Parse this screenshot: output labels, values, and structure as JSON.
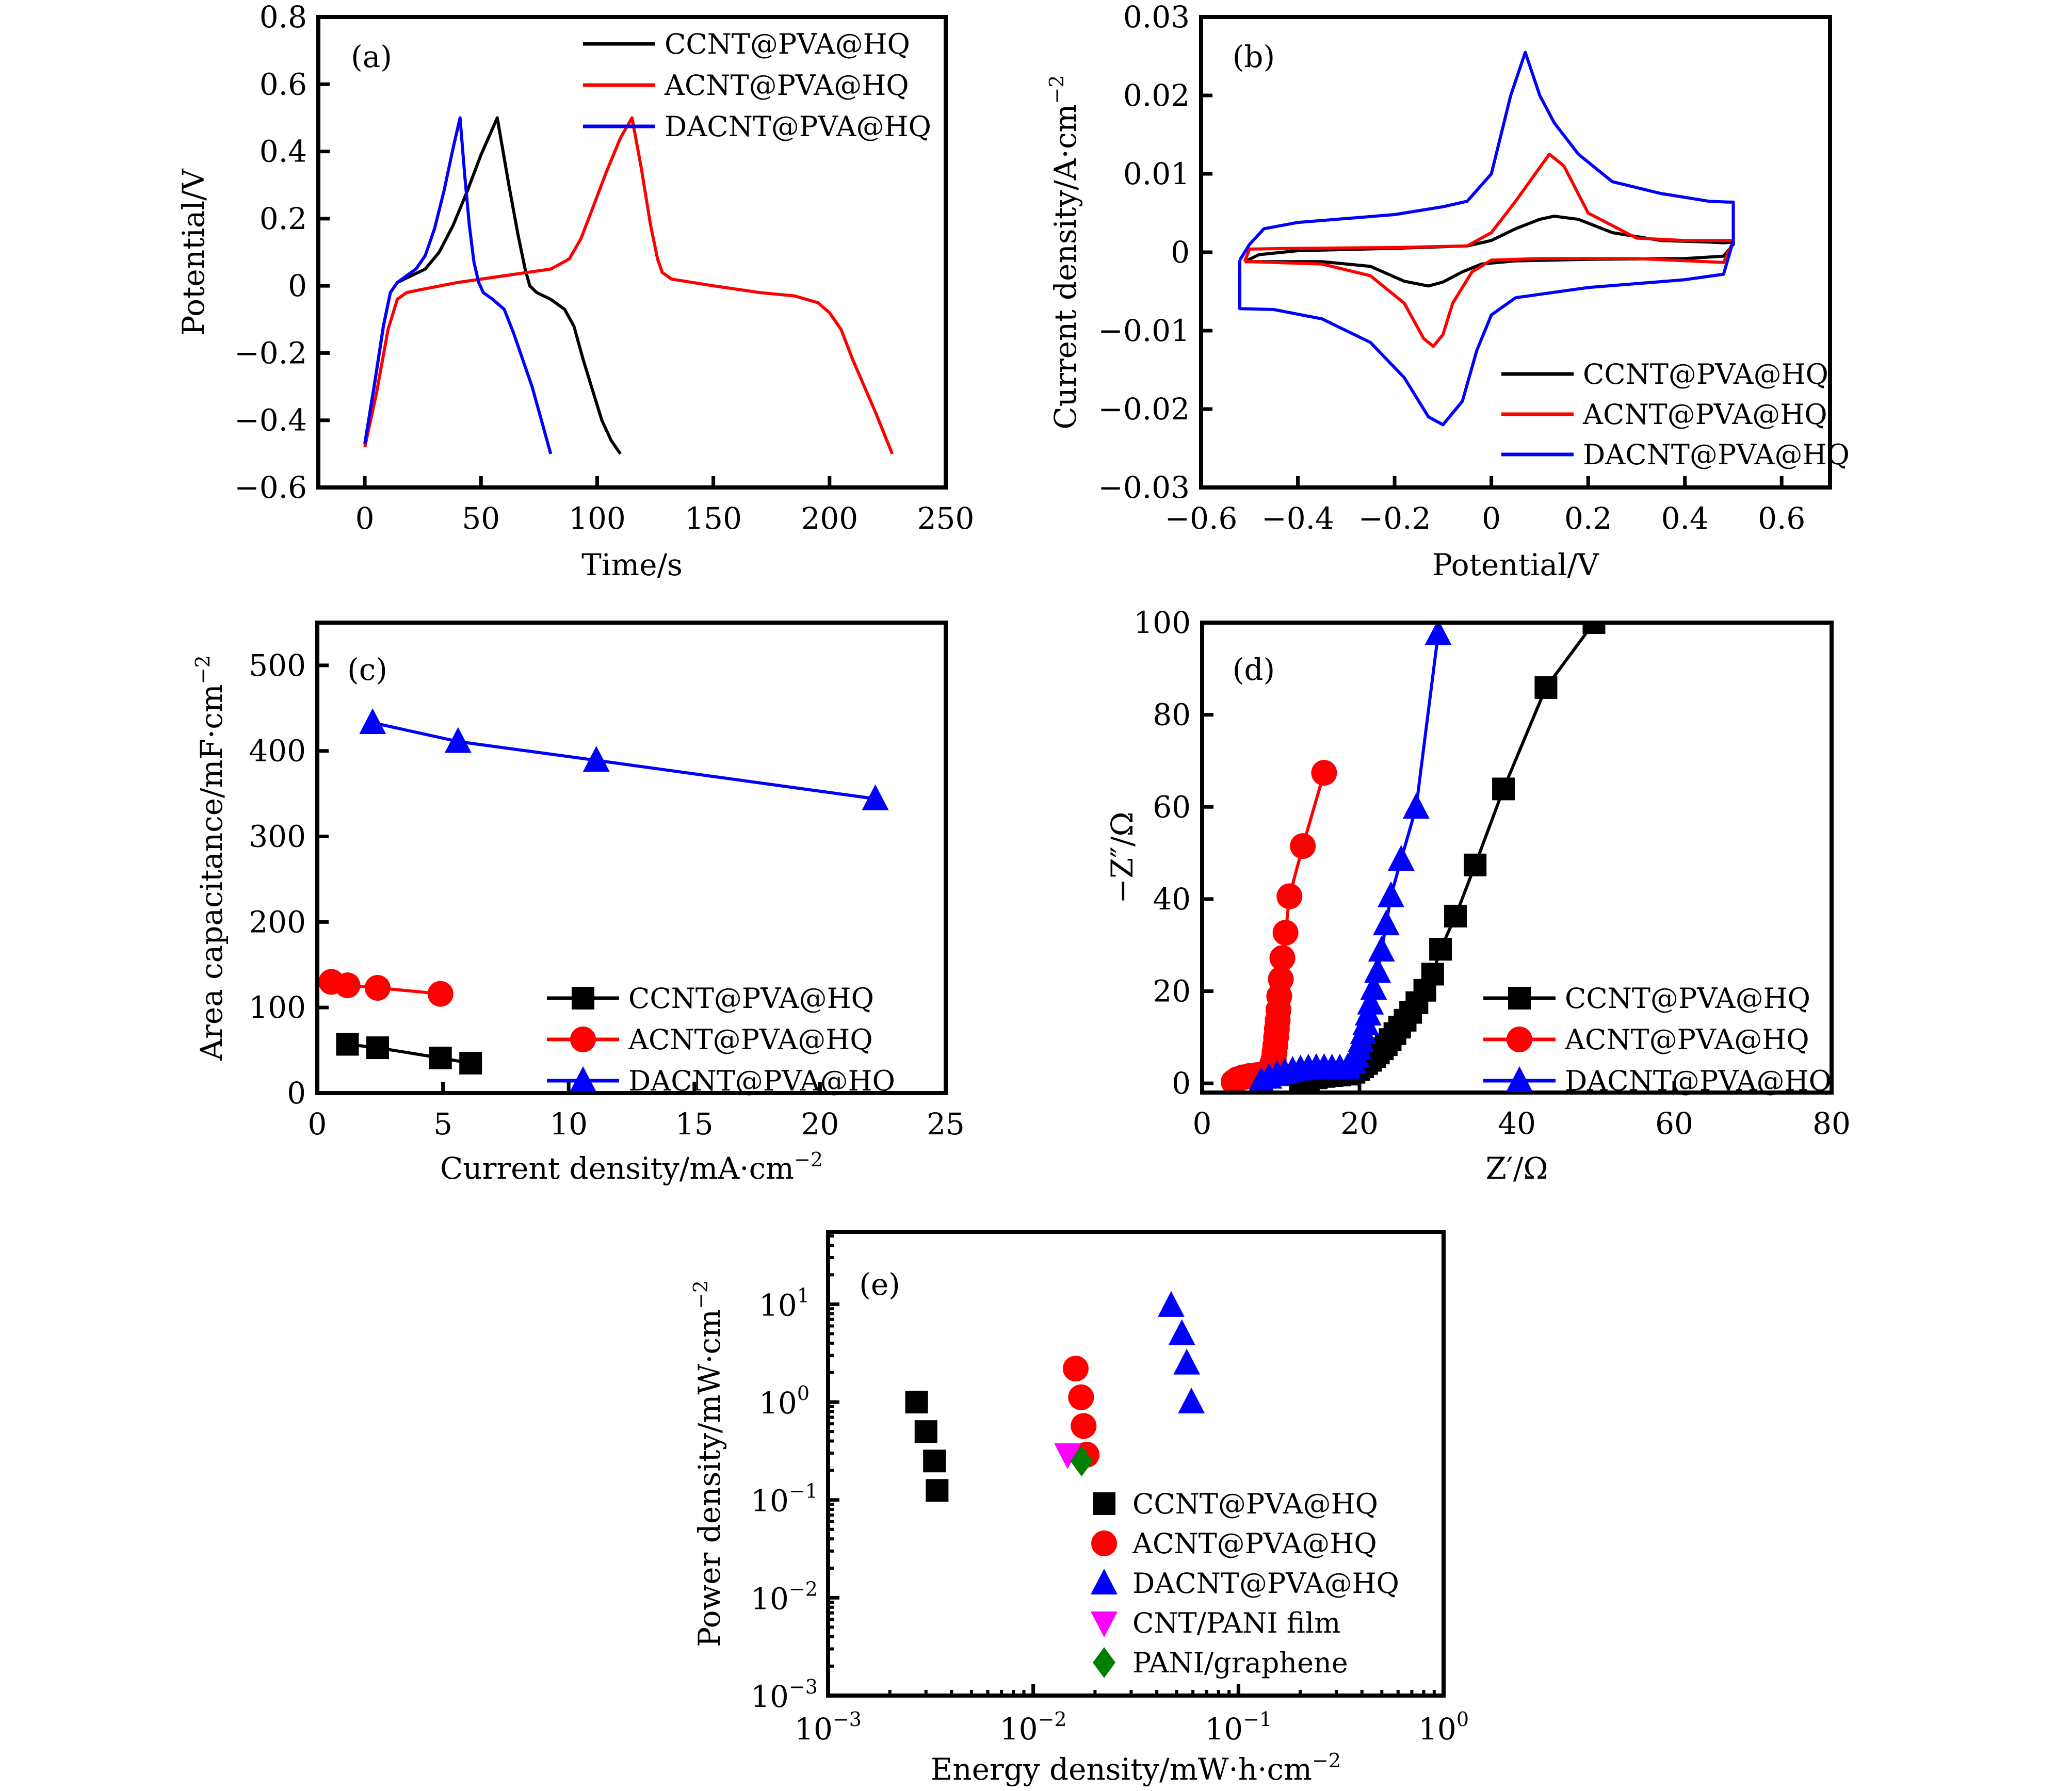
{
  "figure": {
    "panels": [
      "(a)",
      "(b)",
      "(c)",
      "(d)",
      "(e)"
    ]
  },
  "colors": {
    "CCNT@PVA@HQ": "#000000",
    "ACNT@PVA@HQ": "#ff0000",
    "DACNT@PVA@HQ": "#0000ff",
    "CNT/PANI film": "#ff00ff",
    "PANI/graphene": "#008000"
  },
  "chart_data": [
    {
      "id": "a",
      "panel_label": "(a)",
      "type": "line",
      "title": "",
      "xlabel": "Time/s",
      "ylabel": "Potential/V",
      "xlim": [
        -20,
        250
      ],
      "ylim": [
        -0.6,
        0.8
      ],
      "xticks": [
        0,
        50,
        100,
        150,
        200,
        250
      ],
      "yticks": [
        -0.6,
        -0.4,
        -0.2,
        0,
        0.2,
        0.4,
        0.6,
        0.8
      ],
      "ytick_labels": [
        "−0.6",
        "−0.4",
        "−0.2",
        "0",
        "0.2",
        "0.4",
        "0.6",
        "0.8"
      ],
      "xtick_labels": [
        "0",
        "50",
        "100",
        "150",
        "200",
        "250"
      ],
      "legend_position": "top-right",
      "grid": false,
      "series": [
        {
          "name": "CCNT@PVA@HQ",
          "color": "#000000",
          "x": [
            0,
            4,
            8,
            11,
            14,
            20,
            26,
            32,
            38,
            44,
            50,
            57,
            62,
            66,
            69,
            71,
            74,
            80,
            86,
            90,
            94,
            98,
            102,
            106,
            110
          ],
          "y": [
            -0.47,
            -0.3,
            -0.12,
            -0.02,
            0.01,
            0.03,
            0.05,
            0.1,
            0.18,
            0.28,
            0.39,
            0.5,
            0.3,
            0.15,
            0.05,
            0.0,
            -0.02,
            -0.04,
            -0.07,
            -0.12,
            -0.22,
            -0.31,
            -0.4,
            -0.46,
            -0.5
          ]
        },
        {
          "name": "ACNT@PVA@HQ",
          "color": "#ff0000",
          "x": [
            0,
            5,
            10,
            14,
            18,
            25,
            40,
            60,
            80,
            88,
            93,
            98,
            104,
            110,
            115,
            119,
            123,
            126,
            128,
            132,
            150,
            170,
            185,
            195,
            200,
            205,
            210,
            215,
            220,
            227
          ],
          "y": [
            -0.48,
            -0.32,
            -0.13,
            -0.04,
            -0.02,
            -0.01,
            0.01,
            0.03,
            0.05,
            0.08,
            0.14,
            0.23,
            0.34,
            0.44,
            0.5,
            0.35,
            0.18,
            0.08,
            0.04,
            0.02,
            0.0,
            -0.02,
            -0.03,
            -0.05,
            -0.08,
            -0.13,
            -0.22,
            -0.3,
            -0.38,
            -0.5
          ]
        },
        {
          "name": "DACNT@PVA@HQ",
          "color": "#0000ff",
          "x": [
            0,
            4,
            8,
            11,
            14,
            18,
            22,
            26,
            30,
            34,
            38,
            41,
            43,
            45,
            47,
            49,
            51,
            55,
            60,
            64,
            68,
            72,
            76,
            80
          ],
          "y": [
            -0.47,
            -0.3,
            -0.12,
            -0.02,
            0.01,
            0.03,
            0.05,
            0.09,
            0.17,
            0.28,
            0.41,
            0.5,
            0.33,
            0.18,
            0.07,
            0.01,
            -0.02,
            -0.04,
            -0.07,
            -0.14,
            -0.22,
            -0.3,
            -0.4,
            -0.5
          ]
        }
      ]
    },
    {
      "id": "b",
      "panel_label": "(b)",
      "type": "line",
      "title": "",
      "xlabel": "Potential/V",
      "ylabel": "Current density/A·cm⁻²",
      "xlim": [
        -0.6,
        0.7
      ],
      "ylim": [
        -0.03,
        0.03
      ],
      "xticks": [
        -0.6,
        -0.4,
        -0.2,
        0,
        0.2,
        0.4,
        0.6
      ],
      "xtick_labels": [
        "−0.6",
        "−0.4",
        "−0.2",
        "0",
        "0.2",
        "0.4",
        "0.6"
      ],
      "yticks": [
        -0.03,
        -0.02,
        -0.01,
        0,
        0.01,
        0.02,
        0.03
      ],
      "ytick_labels": [
        "−0.03",
        "−0.02",
        "−0.01",
        "0",
        "0.01",
        "0.02",
        "0.03"
      ],
      "legend_position": "bottom-right",
      "grid": false,
      "series": [
        {
          "name": "CCNT@PVA@HQ",
          "color": "#000000",
          "x": [
            -0.51,
            -0.48,
            -0.4,
            -0.2,
            -0.05,
            0.0,
            0.05,
            0.1,
            0.13,
            0.18,
            0.25,
            0.35,
            0.45,
            0.48,
            0.5,
            0.5,
            0.48,
            0.4,
            0.2,
            0.05,
            -0.02,
            -0.06,
            -0.1,
            -0.13,
            -0.18,
            -0.25,
            -0.35,
            -0.45,
            -0.51
          ],
          "y": [
            -0.0012,
            -0.0003,
            0.0002,
            0.0005,
            0.0008,
            0.0015,
            0.003,
            0.0042,
            0.0046,
            0.0042,
            0.0025,
            0.0015,
            0.0013,
            0.0012,
            0.0013,
            0.001,
            -0.0005,
            -0.0008,
            -0.0009,
            -0.0011,
            -0.0015,
            -0.0025,
            -0.0038,
            -0.0043,
            -0.0037,
            -0.0018,
            -0.0012,
            -0.0012,
            -0.0012
          ]
        },
        {
          "name": "ACNT@PVA@HQ",
          "color": "#ff0000",
          "x": [
            -0.51,
            -0.5,
            -0.4,
            -0.2,
            -0.05,
            0.0,
            0.05,
            0.1,
            0.12,
            0.15,
            0.2,
            0.3,
            0.4,
            0.5,
            0.5,
            0.48,
            0.3,
            0.1,
            0.0,
            -0.04,
            -0.08,
            -0.1,
            -0.12,
            -0.14,
            -0.18,
            -0.25,
            -0.35,
            -0.5,
            -0.51
          ],
          "y": [
            -0.0012,
            0.0004,
            0.0005,
            0.0006,
            0.0008,
            0.0025,
            0.0065,
            0.0108,
            0.0125,
            0.011,
            0.005,
            0.0018,
            0.0015,
            0.0015,
            0.0014,
            -0.0013,
            -0.0008,
            -0.0008,
            -0.001,
            -0.0025,
            -0.0065,
            -0.0105,
            -0.012,
            -0.011,
            -0.0065,
            -0.003,
            -0.0015,
            -0.0012,
            -0.0012
          ]
        },
        {
          "name": "DACNT@PVA@HQ",
          "color": "#0000ff",
          "x": [
            -0.52,
            -0.5,
            -0.47,
            -0.4,
            -0.3,
            -0.2,
            -0.1,
            -0.05,
            0.0,
            0.04,
            0.07,
            0.1,
            0.13,
            0.18,
            0.25,
            0.35,
            0.45,
            0.49,
            0.5,
            0.5,
            0.48,
            0.4,
            0.2,
            0.05,
            0.0,
            -0.03,
            -0.06,
            -0.1,
            -0.13,
            -0.18,
            -0.25,
            -0.35,
            -0.45,
            -0.52,
            -0.52
          ],
          "y": [
            -0.001,
            0.001,
            0.003,
            0.0038,
            0.0043,
            0.0048,
            0.0058,
            0.0065,
            0.01,
            0.02,
            0.0255,
            0.02,
            0.0165,
            0.0125,
            0.009,
            0.0075,
            0.0065,
            0.0064,
            0.0064,
            0.0015,
            -0.0028,
            -0.0035,
            -0.0045,
            -0.0058,
            -0.008,
            -0.0125,
            -0.019,
            -0.022,
            -0.021,
            -0.016,
            -0.0115,
            -0.0085,
            -0.0073,
            -0.0072,
            -0.001
          ]
        }
      ]
    },
    {
      "id": "c",
      "panel_label": "(c)",
      "type": "line",
      "title": "",
      "xlabel": "Current density/mA·cm⁻²",
      "ylabel": "Area capacitance/mF·cm⁻²",
      "xlim": [
        0,
        25
      ],
      "ylim": [
        0,
        550
      ],
      "xticks": [
        0,
        5,
        10,
        15,
        20,
        25
      ],
      "xtick_labels": [
        "0",
        "5",
        "10",
        "15",
        "20",
        "25"
      ],
      "yticks": [
        0,
        100,
        200,
        300,
        400,
        500
      ],
      "ytick_labels": [
        "0",
        "100",
        "200",
        "300",
        "400",
        "500"
      ],
      "legend_position": "bottom-right",
      "grid": false,
      "series": [
        {
          "name": "CCNT@PVA@HQ",
          "color": "#000000",
          "marker": "square",
          "x": [
            1.2,
            2.4,
            4.9,
            6.1
          ],
          "y": [
            57,
            53,
            41,
            35
          ]
        },
        {
          "name": "ACNT@PVA@HQ",
          "color": "#ff0000",
          "marker": "circle",
          "x": [
            0.56,
            1.2,
            2.4,
            4.9
          ],
          "y": [
            130,
            126,
            123,
            116
          ]
        },
        {
          "name": "DACNT@PVA@HQ",
          "color": "#0000ff",
          "marker": "triangle",
          "x": [
            2.2,
            5.6,
            11.1,
            22.2
          ],
          "y": [
            433,
            411,
            389,
            344
          ]
        }
      ]
    },
    {
      "id": "d",
      "panel_label": "(d)",
      "type": "line",
      "title": "",
      "xlabel": "Z′/Ω",
      "ylabel": "−Z″/Ω",
      "xlim": [
        0,
        80
      ],
      "ylim": [
        -2,
        100
      ],
      "xticks": [
        0,
        20,
        40,
        60,
        80
      ],
      "xtick_labels": [
        "0",
        "20",
        "40",
        "60",
        "80"
      ],
      "yticks": [
        0,
        20,
        40,
        60,
        80,
        100
      ],
      "ytick_labels": [
        "0",
        "20",
        "40",
        "60",
        "80",
        "100"
      ],
      "legend_position": "bottom-right",
      "grid": false,
      "series": [
        {
          "name": "CCNT@PVA@HQ",
          "color": "#000000",
          "marker": "square",
          "x": [
            12.5,
            13.5,
            14.5,
            15.5,
            16.5,
            17.5,
            18.5,
            19.3,
            19.9,
            20.4,
            20.9,
            21.4,
            21.9,
            22.4,
            22.9,
            23.4,
            23.9,
            24.5,
            25.1,
            25.8,
            26.5,
            27.3,
            28.3,
            29.3,
            30.3,
            32.2,
            34.7,
            38.3,
            43.7,
            49.8
          ],
          "y": [
            0.2,
            0.7,
            1.2,
            1.5,
            1.7,
            1.8,
            2.0,
            2.4,
            3.0,
            3.6,
            4.3,
            5.0,
            5.8,
            6.6,
            7.5,
            8.4,
            9.5,
            10.8,
            12.2,
            13.7,
            15.4,
            17.5,
            20.2,
            23.7,
            29.1,
            36.3,
            47.4,
            63.9,
            85.9,
            100.0
          ]
        },
        {
          "name": "ACNT@PVA@HQ",
          "color": "#ff0000",
          "marker": "circle",
          "x": [
            4.0,
            4.5,
            5.2,
            6.0,
            7.0,
            7.8,
            8.4,
            8.7,
            8.9,
            9.1,
            9.2,
            9.3,
            9.4,
            9.5,
            9.6,
            9.7,
            9.8,
            10.0,
            10.2,
            10.6,
            11.1,
            12.8,
            15.5
          ],
          "y": [
            0.3,
            0.9,
            1.3,
            1.6,
            1.8,
            2.0,
            2.4,
            3.2,
            4.2,
            5.3,
            6.7,
            8.2,
            10.0,
            11.8,
            13.6,
            15.9,
            18.9,
            22.6,
            27.2,
            32.7,
            40.6,
            51.5,
            67.4
          ]
        },
        {
          "name": "DACNT@PVA@HQ",
          "color": "#0000ff",
          "marker": "triangle",
          "x": [
            7.5,
            8.5,
            9.5,
            10.5,
            11.5,
            12.5,
            13.5,
            14.5,
            15.5,
            16.5,
            17.5,
            18.5,
            19.2,
            19.6,
            19.9,
            20.2,
            20.5,
            20.8,
            21.1,
            21.4,
            21.8,
            22.3,
            22.8,
            23.4,
            24.0,
            25.3,
            27.2,
            30.0
          ],
          "y": [
            0.5,
            1.3,
            1.9,
            2.4,
            2.8,
            3.1,
            3.3,
            3.4,
            3.4,
            3.3,
            3.3,
            3.5,
            4.5,
            6.0,
            7.6,
            9.2,
            11.0,
            12.9,
            15.0,
            17.4,
            20.6,
            24.3,
            28.9,
            34.6,
            40.7,
            48.6,
            59.9,
            97.6
          ]
        }
      ]
    },
    {
      "id": "e",
      "panel_label": "(e)",
      "type": "scatter",
      "title": "",
      "xlabel": "Energy density/mW·h·cm⁻²",
      "ylabel": "Power density/mW·cm⁻²",
      "xscale": "log",
      "yscale": "log",
      "xlim": [
        0.001,
        1
      ],
      "ylim": [
        0.001,
        55
      ],
      "xticks": [
        0.001,
        0.01,
        0.1,
        1
      ],
      "xtick_labels": [
        [
          "10",
          "−3"
        ],
        [
          "10",
          "−2"
        ],
        [
          "10",
          "−1"
        ],
        [
          "10",
          "0"
        ]
      ],
      "yticks": [
        0.001,
        0.01,
        0.1,
        1,
        10
      ],
      "ytick_labels": [
        [
          "10",
          "−3"
        ],
        [
          "10",
          "−2"
        ],
        [
          "10",
          "−1"
        ],
        [
          "10",
          "0"
        ],
        [
          "10",
          "1"
        ]
      ],
      "legend_position": "lower-middle",
      "grid": false,
      "series": [
        {
          "name": "CCNT@PVA@HQ",
          "color": "#000000",
          "marker": "square",
          "x": [
            0.0027,
            0.003,
            0.0033,
            0.0034
          ],
          "y": [
            1.0,
            0.5,
            0.25,
            0.125
          ]
        },
        {
          "name": "ACNT@PVA@HQ",
          "color": "#ff0000",
          "marker": "circle",
          "x": [
            0.0161,
            0.0171,
            0.0176,
            0.0182
          ],
          "y": [
            2.2,
            1.12,
            0.57,
            0.29
          ]
        },
        {
          "name": "DACNT@PVA@HQ",
          "color": "#0000ff",
          "marker": "triangle",
          "x": [
            0.047,
            0.053,
            0.056,
            0.059
          ],
          "y": [
            9.7,
            5.0,
            2.5,
            1.0
          ]
        },
        {
          "name": "CNT/PANI film",
          "color": "#ff00ff",
          "marker": "triangle-down",
          "x": [
            0.0147
          ],
          "y": [
            0.29
          ]
        },
        {
          "name": "PANI/graphene",
          "color": "#008000",
          "marker": "diamond",
          "x": [
            0.0172
          ],
          "y": [
            0.25
          ]
        }
      ]
    }
  ]
}
